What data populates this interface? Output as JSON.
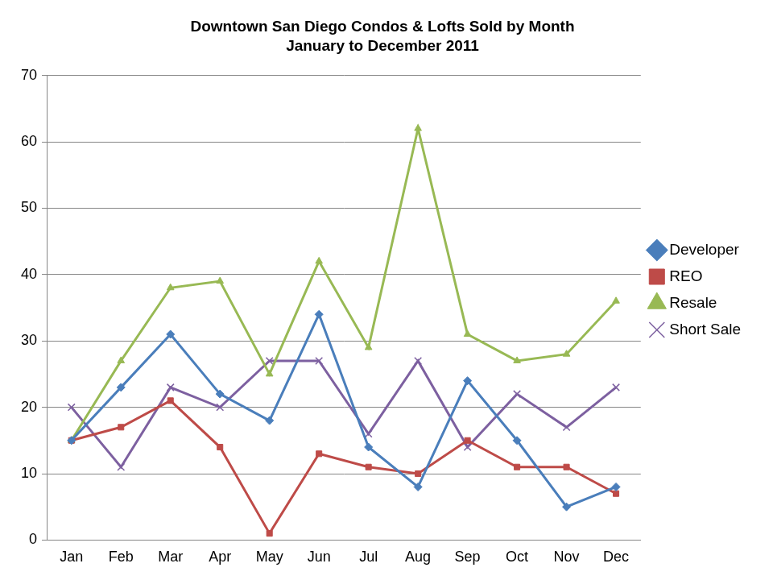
{
  "chart_data": {
    "type": "line",
    "title": "Downtown San Diego Condos & Lofts Sold by Month",
    "subtitle": "January to December 2011",
    "categories": [
      "Jan",
      "Feb",
      "Mar",
      "Apr",
      "May",
      "Jun",
      "Jul",
      "Aug",
      "Sep",
      "Oct",
      "Nov",
      "Dec"
    ],
    "series": [
      {
        "name": "Developer",
        "color": "#4a7ebb",
        "marker": "diamond",
        "values": [
          15,
          23,
          31,
          22,
          18,
          34,
          14,
          8,
          24,
          15,
          5,
          8
        ]
      },
      {
        "name": "REO",
        "color": "#be4b48",
        "marker": "square",
        "values": [
          15,
          17,
          21,
          14,
          1,
          13,
          11,
          10,
          15,
          11,
          11,
          7
        ]
      },
      {
        "name": "Resale",
        "color": "#98b954",
        "marker": "triangle",
        "values": [
          15,
          27,
          38,
          39,
          25,
          42,
          29,
          62,
          31,
          27,
          28,
          36
        ]
      },
      {
        "name": "Short Sale",
        "color": "#7d60a0",
        "marker": "x",
        "values": [
          20,
          11,
          23,
          20,
          27,
          27,
          16,
          27,
          14,
          22,
          17,
          23
        ]
      }
    ],
    "ylim": [
      0,
      70
    ],
    "yticks": [
      0,
      10,
      20,
      30,
      40,
      50,
      60,
      70
    ],
    "grid": true,
    "legend": "right"
  }
}
